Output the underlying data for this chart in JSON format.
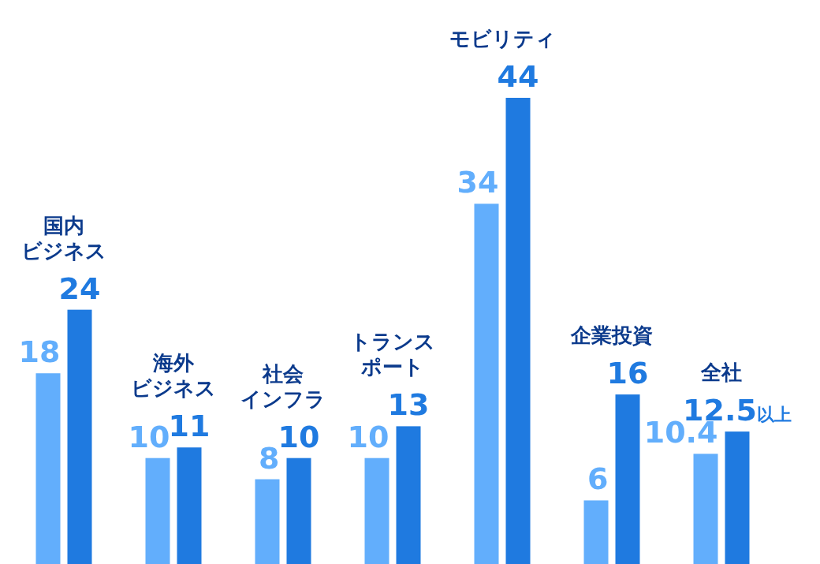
{
  "chart_data": {
    "type": "bar",
    "categories": [
      "国内ビジネス",
      "海外ビジネス",
      "社会インフラ",
      "トランスポート",
      "モビリティ",
      "企業投資",
      "全社"
    ],
    "series": [
      {
        "color": "#62aefc",
        "values": [
          18,
          10,
          8,
          10,
          34,
          6,
          10.4
        ],
        "value_labels": [
          "18",
          "10",
          "8",
          "10",
          "34",
          "6",
          "10.4"
        ]
      },
      {
        "color": "#1f7ae0",
        "values": [
          24,
          11,
          10,
          13,
          44,
          16,
          12.5
        ],
        "value_labels": [
          "24",
          "11",
          "10",
          "13",
          "44",
          "16",
          "12.5以上"
        ]
      }
    ]
  }
}
